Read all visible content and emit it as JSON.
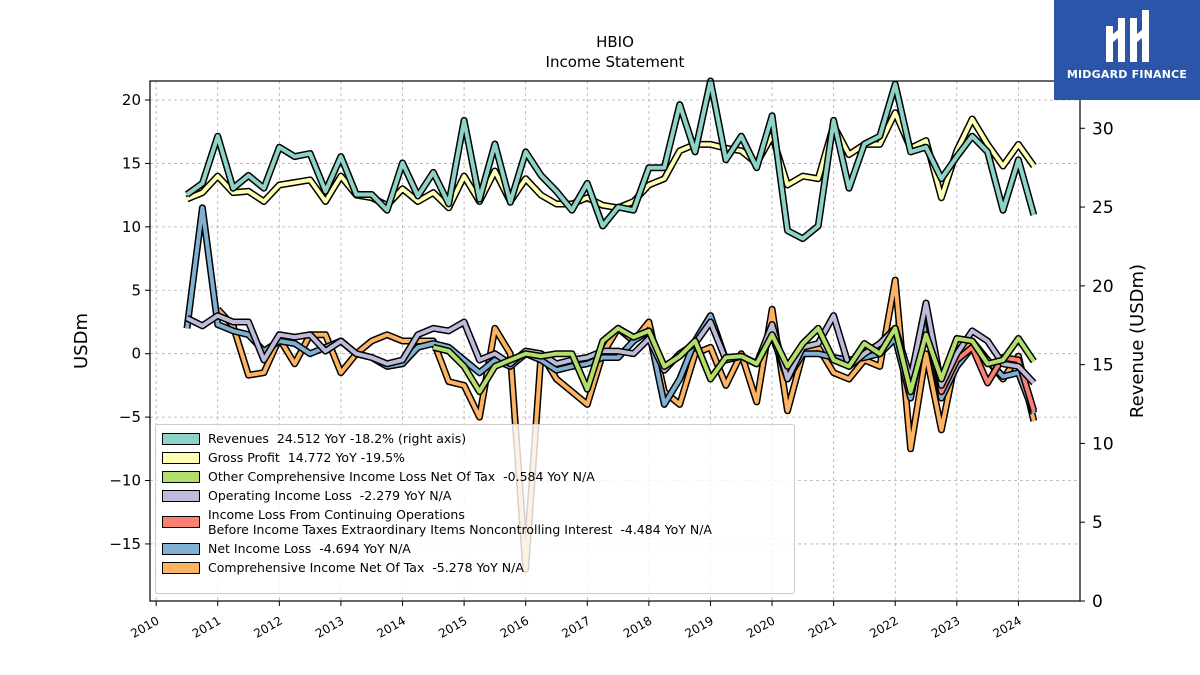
{
  "chart_data": {
    "type": "line",
    "title": "HBIO",
    "subtitle": "Income Statement",
    "ylabel_left": "USDm",
    "ylabel_right": "Revenue (USDm)",
    "ylim_left": [
      -19.5,
      21.5
    ],
    "ylim_right": [
      0,
      33
    ],
    "yticks_left": [
      "20",
      "15",
      "10",
      "5",
      "0",
      "−5",
      "−10",
      "−15"
    ],
    "yticks_right": [
      "30",
      "25",
      "20",
      "15",
      "10",
      "5",
      "0"
    ],
    "xlim": [
      2009.9,
      2025.0
    ],
    "xticks": [
      "2010",
      "2011",
      "2012",
      "2013",
      "2014",
      "2015",
      "2016",
      "2017",
      "2018",
      "2019",
      "2020",
      "2021",
      "2022",
      "2023",
      "2024"
    ],
    "grid": true,
    "legend_position": "lower-left",
    "x": [
      2010.5,
      2010.75,
      2011.0,
      2011.25,
      2011.5,
      2011.75,
      2012.0,
      2012.25,
      2012.5,
      2012.75,
      2013.0,
      2013.25,
      2013.5,
      2013.75,
      2014.0,
      2014.25,
      2014.5,
      2014.75,
      2015.0,
      2015.25,
      2015.5,
      2015.75,
      2016.0,
      2016.25,
      2016.5,
      2016.75,
      2017.0,
      2017.25,
      2017.5,
      2017.75,
      2018.0,
      2018.25,
      2018.5,
      2018.75,
      2019.0,
      2019.25,
      2019.5,
      2019.75,
      2020.0,
      2020.25,
      2020.5,
      2020.75,
      2021.0,
      2021.25,
      2021.5,
      2021.75,
      2022.0,
      2022.25,
      2022.5,
      2022.75,
      2023.0,
      2023.25,
      2023.5,
      2023.75,
      2024.0,
      2024.25
    ],
    "series": [
      {
        "name": "Revenues",
        "legend": "Revenues  24.512 YoY -18.2% (right axis)",
        "color": "#8dd3c7",
        "axis": "right",
        "values": [
          25.8,
          26.5,
          29.5,
          26.2,
          27.0,
          26.2,
          28.8,
          28.2,
          28.4,
          26.0,
          28.2,
          25.8,
          25.8,
          24.8,
          27.8,
          25.7,
          27.2,
          25.2,
          30.5,
          25.5,
          29.0,
          25.3,
          28.5,
          27.0,
          26.0,
          24.8,
          26.5,
          23.8,
          25.0,
          24.8,
          27.5,
          27.5,
          31.5,
          28.5,
          33.0,
          28.0,
          29.5,
          27.5,
          30.8,
          23.5,
          23.0,
          23.8,
          30.5,
          26.2,
          29.0,
          29.5,
          32.8,
          28.5,
          28.8,
          26.8,
          28.2,
          29.5,
          28.5,
          24.8,
          28.0,
          24.5
        ]
      },
      {
        "name": "Gross Profit",
        "legend": "Gross Profit  14.772 YoY -19.5%",
        "color": "#ffffb3",
        "axis": "left",
        "values": [
          12.2,
          12.7,
          14.0,
          12.7,
          12.8,
          12.0,
          13.3,
          13.5,
          13.7,
          12.0,
          14.0,
          12.5,
          12.3,
          11.7,
          13.0,
          12.0,
          12.7,
          11.5,
          14.0,
          12.0,
          14.4,
          12.0,
          13.8,
          12.5,
          11.8,
          11.8,
          12.3,
          11.7,
          11.5,
          12.0,
          13.3,
          13.8,
          16.0,
          16.5,
          16.5,
          16.2,
          16.0,
          15.0,
          17.2,
          13.3,
          14.0,
          13.8,
          18.0,
          15.7,
          16.5,
          16.5,
          19.0,
          16.2,
          16.8,
          12.3,
          16.0,
          18.5,
          16.5,
          14.8,
          16.5,
          14.8
        ]
      },
      {
        "name": "Other Comprehensive Income Loss Net Of Tax",
        "legend": "Other Comprehensive Income Loss Net Of Tax  -0.584 YoY N/A",
        "color": "#b3de69",
        "axis": "left",
        "values": [
          null,
          null,
          null,
          null,
          null,
          null,
          null,
          null,
          null,
          null,
          null,
          null,
          null,
          null,
          null,
          null,
          0.5,
          0.2,
          -1.0,
          -3.0,
          -1.0,
          -0.5,
          0.0,
          -0.2,
          0.0,
          0.0,
          -2.8,
          1.0,
          2.0,
          1.3,
          1.8,
          -1.0,
          -0.2,
          1.0,
          -2.0,
          -0.3,
          -0.2,
          -0.8,
          1.5,
          -1.0,
          0.8,
          2.0,
          -0.5,
          -1.0,
          0.8,
          0.0,
          2.0,
          -3.0,
          1.5,
          -2.0,
          1.2,
          1.0,
          -0.8,
          -0.5,
          1.2,
          -0.6
        ]
      },
      {
        "name": "Operating Income Loss",
        "legend": "Operating Income Loss  -2.279 YoY N/A",
        "color": "#bebada",
        "axis": "left",
        "values": [
          2.8,
          2.2,
          3.0,
          2.5,
          2.5,
          -0.5,
          1.5,
          1.3,
          1.5,
          0.2,
          1.0,
          0.0,
          -0.3,
          -0.8,
          -0.5,
          1.5,
          2.0,
          1.8,
          2.5,
          -0.5,
          0.0,
          -0.8,
          0.2,
          0.0,
          -0.8,
          -0.5,
          -0.3,
          0.2,
          0.2,
          0.0,
          1.2,
          -1.3,
          0.0,
          0.8,
          2.5,
          -0.5,
          -0.2,
          -0.8,
          2.3,
          -2.0,
          0.5,
          0.8,
          3.0,
          -1.0,
          0.0,
          0.8,
          2.0,
          -2.0,
          4.0,
          -2.5,
          0.0,
          1.8,
          1.0,
          -0.8,
          -1.0,
          -2.3
        ]
      },
      {
        "name": "Income Loss From Continuing Operations Before Income Taxes Extraordinary Items Noncontrolling Interest",
        "legend": "Income Loss From Continuing Operations\nBefore Income Taxes Extraordinary Items Noncontrolling Interest  -4.484 YoY N/A",
        "color": "#fb8072",
        "axis": "left",
        "values": [
          null,
          null,
          null,
          null,
          null,
          null,
          null,
          null,
          null,
          null,
          null,
          null,
          null,
          null,
          null,
          null,
          null,
          null,
          null,
          null,
          null,
          null,
          null,
          null,
          null,
          null,
          null,
          null,
          null,
          null,
          null,
          null,
          null,
          null,
          null,
          null,
          null,
          null,
          null,
          null,
          null,
          null,
          null,
          null,
          null,
          null,
          null,
          null,
          3.5,
          -3.0,
          -0.5,
          0.5,
          -2.3,
          -0.3,
          -0.5,
          -4.5
        ]
      },
      {
        "name": "Net Income Loss",
        "legend": "Net Income Loss  -4.694 YoY N/A",
        "color": "#80b1d3",
        "axis": "left",
        "values": [
          2.0,
          11.5,
          2.3,
          1.8,
          1.5,
          0.2,
          1.0,
          0.8,
          0.0,
          0.5,
          1.0,
          0.0,
          -0.3,
          -1.0,
          -0.8,
          0.5,
          0.8,
          0.5,
          -0.5,
          -1.5,
          -0.5,
          -1.0,
          0.0,
          -0.5,
          -1.3,
          -1.0,
          -0.8,
          -0.3,
          -0.3,
          1.0,
          1.8,
          -4.0,
          -2.0,
          1.0,
          3.0,
          -0.5,
          -0.2,
          -0.8,
          1.5,
          -2.0,
          0.0,
          0.0,
          -0.3,
          -0.5,
          -0.3,
          0.0,
          1.2,
          -3.5,
          2.5,
          -3.5,
          -1.0,
          0.5,
          -0.5,
          -1.8,
          -1.5,
          -4.7
        ]
      },
      {
        "name": "Comprehensive Income Net Of Tax",
        "legend": "Comprehensive Income Net Of Tax  -5.278 YoY N/A",
        "color": "#fdb462",
        "axis": "left",
        "values": [
          null,
          null,
          3.5,
          2.2,
          -1.7,
          -1.5,
          1.2,
          -0.8,
          1.5,
          1.5,
          -1.5,
          0.0,
          1.0,
          1.5,
          1.0,
          1.0,
          1.0,
          -2.2,
          -2.5,
          -5.0,
          2.0,
          0.0,
          -17.0,
          0.0,
          -2.0,
          -3.0,
          -4.0,
          0.0,
          2.0,
          1.0,
          2.5,
          -3.0,
          -4.0,
          0.0,
          0.5,
          -2.5,
          0.0,
          -3.8,
          3.5,
          -4.5,
          0.0,
          0.5,
          -1.5,
          -2.0,
          -0.5,
          -1.0,
          5.8,
          -7.5,
          0.0,
          -6.0,
          0.0,
          1.0,
          -0.5,
          -2.0,
          -0.2,
          -5.3
        ]
      }
    ]
  },
  "brand": {
    "name": "MIDGARD FINANCE",
    "color": "#2a55a8"
  }
}
